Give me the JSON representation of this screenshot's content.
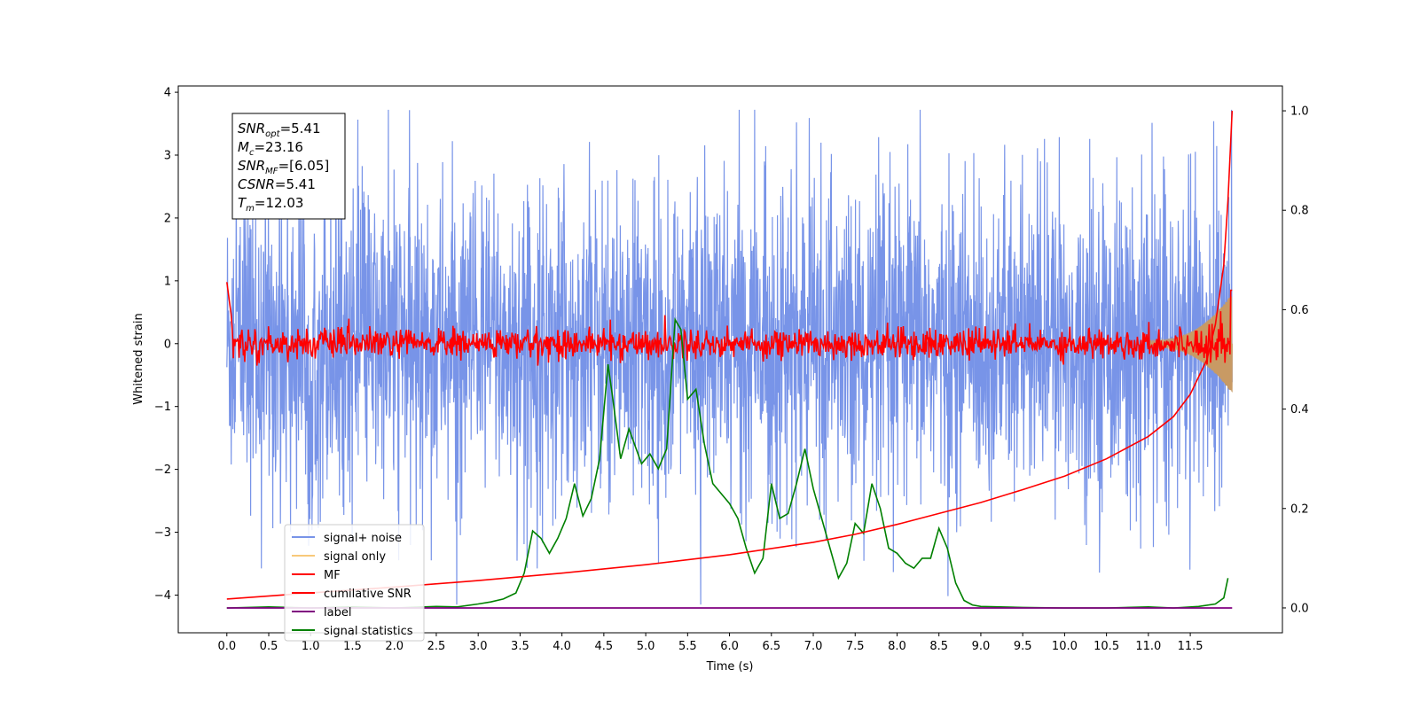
{
  "chart_data": {
    "type": "line",
    "title": "",
    "xlabel": "Time (s)",
    "ylabel": "Whitened strain",
    "xlim": [
      -0.58,
      12.6
    ],
    "ylim": [
      -4.6,
      4.1
    ],
    "y2lim": [
      -0.05,
      1.05
    ],
    "x_ticks": [
      0.0,
      0.5,
      1.0,
      1.5,
      2.0,
      2.5,
      3.0,
      3.5,
      4.0,
      4.5,
      5.0,
      5.5,
      6.0,
      6.5,
      7.0,
      7.5,
      8.0,
      8.5,
      9.0,
      9.5,
      10.0,
      10.5,
      11.0,
      11.5
    ],
    "x_tick_labels": [
      "0.0",
      "0.5",
      "1.0",
      "1.5",
      "2.0",
      "2.5",
      "3.0",
      "3.5",
      "4.0",
      "4.5",
      "5.0",
      "5.5",
      "6.0",
      "6.5",
      "7.0",
      "7.5",
      "8.0",
      "8.5",
      "9.0",
      "9.5",
      "10.0",
      "10.5",
      "11.0",
      "11.5"
    ],
    "y_ticks": [
      4,
      3,
      2,
      1,
      0,
      -1,
      -2,
      -3,
      -4
    ],
    "y_tick_labels": [
      "4",
      "3",
      "2",
      "1",
      "0",
      "−1",
      "−2",
      "−3",
      "−4"
    ],
    "y2_ticks": [
      1.0,
      0.8,
      0.6,
      0.4,
      0.2,
      0.0
    ],
    "y2_tick_labels": [
      "1.0",
      "0.8",
      "0.6",
      "0.4",
      "0.2",
      "0.0"
    ],
    "grid": false,
    "legend_placement": "lower-left",
    "annotation": [
      {
        "main": "SNR",
        "sub": "opt",
        "rest": "=5.41"
      },
      {
        "main": "M",
        "sub": "c",
        "rest": "=23.16"
      },
      {
        "main": "SNR",
        "sub": "MF",
        "rest": "=[6.05]"
      },
      {
        "main": "CSNR",
        "sub": "",
        "rest": "=5.41"
      },
      {
        "main": "T",
        "sub": "m",
        "rest": "=12.03"
      }
    ],
    "series": [
      {
        "name": "signal+ noise",
        "color": "#7894e8",
        "axis": "left",
        "kind": "noise",
        "x_range": [
          0.0,
          12.0
        ],
        "center": 0.0,
        "typical_range": [
          -2.2,
          2.2
        ],
        "extremes": [
          -4.15,
          3.72
        ]
      },
      {
        "name": "signal only",
        "color": "#f8c97a",
        "axis": "left",
        "kind": "chirp",
        "x_range": [
          11.0,
          12.0
        ],
        "amplitude_end": 0.75,
        "visible_region": "chirp growing in last second, brown where overlapping the noise band"
      },
      {
        "name": "MF",
        "color": "#ff0000",
        "axis": "left",
        "kind": "noise",
        "x_range": [
          0.0,
          12.0
        ],
        "center": 0.0,
        "typical_range": [
          -0.3,
          0.3
        ],
        "extremes": [
          -0.35,
          0.98
        ]
      },
      {
        "name": "cumilative SNR",
        "color": "#ff0000",
        "axis": "right",
        "x": [
          0.0,
          1.0,
          2.0,
          3.0,
          4.0,
          5.0,
          6.0,
          7.0,
          7.5,
          8.0,
          8.5,
          9.0,
          9.5,
          10.0,
          10.5,
          11.0,
          11.3,
          11.5,
          11.7,
          11.8,
          11.9,
          11.95,
          12.0
        ],
        "values": [
          0.018,
          0.03,
          0.042,
          0.055,
          0.07,
          0.087,
          0.107,
          0.132,
          0.148,
          0.168,
          0.19,
          0.212,
          0.238,
          0.265,
          0.3,
          0.345,
          0.385,
          0.43,
          0.5,
          0.57,
          0.69,
          0.82,
          1.0
        ]
      },
      {
        "name": "label",
        "color": "#800080",
        "axis": "right",
        "x": [
          0.0,
          12.0
        ],
        "values": [
          0.0,
          0.0
        ]
      },
      {
        "name": "signal statistics",
        "color": "#008000",
        "axis": "right",
        "x": [
          0.0,
          0.5,
          1.0,
          1.5,
          2.0,
          2.5,
          2.75,
          3.0,
          3.15,
          3.3,
          3.45,
          3.55,
          3.65,
          3.75,
          3.85,
          3.95,
          4.05,
          4.15,
          4.25,
          4.35,
          4.45,
          4.55,
          4.6,
          4.7,
          4.8,
          4.95,
          5.05,
          5.15,
          5.25,
          5.35,
          5.42,
          5.5,
          5.6,
          5.7,
          5.8,
          5.9,
          6.0,
          6.1,
          6.2,
          6.3,
          6.4,
          6.5,
          6.6,
          6.7,
          6.8,
          6.9,
          7.0,
          7.1,
          7.2,
          7.3,
          7.4,
          7.5,
          7.6,
          7.7,
          7.8,
          7.9,
          8.0,
          8.1,
          8.2,
          8.3,
          8.4,
          8.5,
          8.6,
          8.7,
          8.8,
          8.9,
          9.0,
          9.5,
          10.0,
          10.5,
          11.0,
          11.3,
          11.6,
          11.8,
          11.9,
          11.95
        ],
        "values": [
          0.0,
          0.002,
          0.0,
          0.002,
          0.0,
          0.003,
          0.002,
          0.008,
          0.012,
          0.018,
          0.03,
          0.07,
          0.155,
          0.14,
          0.11,
          0.14,
          0.18,
          0.25,
          0.185,
          0.22,
          0.3,
          0.49,
          0.43,
          0.3,
          0.36,
          0.29,
          0.31,
          0.28,
          0.32,
          0.58,
          0.56,
          0.42,
          0.44,
          0.33,
          0.25,
          0.23,
          0.21,
          0.18,
          0.12,
          0.07,
          0.1,
          0.25,
          0.18,
          0.19,
          0.25,
          0.32,
          0.24,
          0.18,
          0.12,
          0.06,
          0.09,
          0.17,
          0.15,
          0.25,
          0.2,
          0.12,
          0.11,
          0.09,
          0.08,
          0.1,
          0.1,
          0.16,
          0.12,
          0.05,
          0.015,
          0.006,
          0.003,
          0.001,
          0.0,
          0.0,
          0.002,
          0.0,
          0.003,
          0.008,
          0.02,
          0.06
        ]
      }
    ]
  }
}
